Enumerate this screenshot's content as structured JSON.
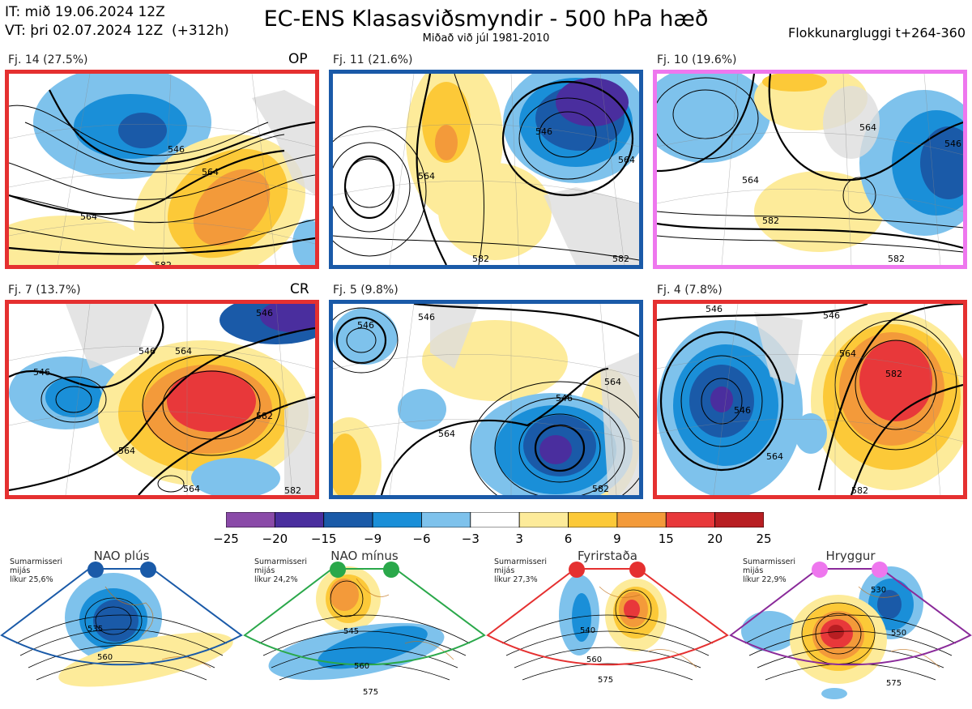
{
  "header": {
    "it_line": "IT: mið 19.06.2024 12Z",
    "vt_line": "VT: þri 02.07.2024 12Z  (+312h)",
    "title": "EC-ENS Klasasviðsmyndir - 500 hPa hæð",
    "subtitle": "Miðað við júl 1981-2010",
    "window": "Flokkunargluggi t+264-360"
  },
  "panels": [
    {
      "label": "Fj. 14 (27.5%)",
      "tag": "OP",
      "border": "#e53030",
      "contours": [
        "546",
        "564",
        "564",
        "582"
      ]
    },
    {
      "label": "Fj. 11 (21.6%)",
      "tag": "",
      "border": "#1a5aa8",
      "contours": [
        "546",
        "564",
        "564",
        "582",
        "582"
      ]
    },
    {
      "label": "Fj. 10 (19.6%)",
      "tag": "",
      "border": "#ee77ee",
      "contours": [
        "564",
        "546",
        "564",
        "582",
        "582"
      ]
    },
    {
      "label": "Fj. 7 (13.7%)",
      "tag": "CR",
      "border": "#e53030",
      "contours": [
        "546",
        "546",
        "546",
        "564",
        "564",
        "582",
        "582",
        "564"
      ]
    },
    {
      "label": "Fj. 5 (9.8%)",
      "tag": "",
      "border": "#1a5aa8",
      "contours": [
        "546",
        "546",
        "546",
        "564",
        "564",
        "582"
      ]
    },
    {
      "label": "Fj. 4 (7.8%)",
      "tag": "",
      "border": "#e53030",
      "contours": [
        "546",
        "546",
        "564",
        "582",
        "546",
        "564",
        "582"
      ]
    }
  ],
  "colorbar": {
    "ticks": [
      "−25",
      "−20",
      "−15",
      "−9",
      "−6",
      "−3",
      "3",
      "6",
      "9",
      "15",
      "20",
      "25"
    ],
    "colors": [
      "#8a4aa8",
      "#4a2e9e",
      "#1a5aa8",
      "#1a8fd8",
      "#7ec2ec",
      "#ffffff",
      "#fdeb9a",
      "#fcc938",
      "#f39a3a",
      "#e8383a",
      "#b81e22"
    ]
  },
  "regimes": [
    {
      "name": "NAO plús",
      "info": "Sumarmisseri\nmijás\nlíkur 25,6%",
      "color": "#1a5aa8",
      "dot": "#1a5aa8",
      "contours": [
        "535",
        "560"
      ]
    },
    {
      "name": "NAO mínus",
      "info": "Sumarmisseri\nmijás\nlíkur 24,2%",
      "color": "#2aa84a",
      "dot": "#2aa84a",
      "contours": [
        "545",
        "560",
        "575"
      ]
    },
    {
      "name": "Fyrirstaða",
      "info": "Sumarmisseri\nmijás\nlíkur 27,3%",
      "color": "#e53030",
      "dot": "#e53030",
      "contours": [
        "540",
        "560",
        "575"
      ]
    },
    {
      "name": "Hryggur",
      "info": "Sumarmisseri\nmijás\nlíkur 22,9%",
      "color": "#8a2a9a",
      "dot": "#ee77ee",
      "contours": [
        "530",
        "550",
        "575"
      ]
    }
  ]
}
